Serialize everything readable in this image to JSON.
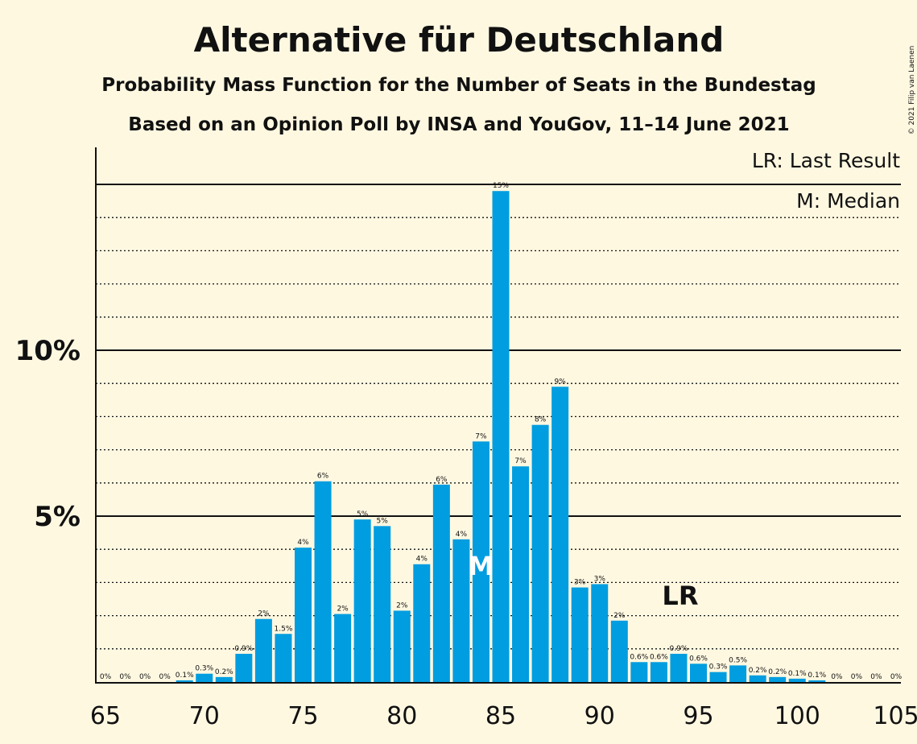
{
  "chart_data": {
    "type": "bar",
    "title": "Alternative für Deutschland",
    "subtitle1": "Probability Mass Function for the Number of Seats in the Bundestag",
    "subtitle2": "Based on an Opinion Poll by INSA and YouGov, 11–14 June 2021",
    "copyright": "© 2021 Filip van Laenen",
    "legend": [
      "LR: Last Result",
      "M: Median"
    ],
    "xlabel": "",
    "ylabel": "",
    "x_ticks": [
      "65",
      "70",
      "75",
      "80",
      "85",
      "90",
      "95",
      "100",
      "105"
    ],
    "y_ticks": [
      {
        "value": 5,
        "label": "5%"
      },
      {
        "value": 10,
        "label": "10%"
      }
    ],
    "ylim": [
      0,
      16
    ],
    "bar_color": "#009de0",
    "x": [
      65,
      66,
      67,
      68,
      69,
      70,
      71,
      72,
      73,
      74,
      75,
      76,
      77,
      78,
      79,
      80,
      81,
      82,
      83,
      84,
      85,
      86,
      87,
      88,
      89,
      90,
      91,
      92,
      93,
      94,
      95,
      96,
      97,
      98,
      99,
      100,
      101,
      102,
      103,
      104,
      105
    ],
    "values": [
      0,
      0,
      0,
      0,
      0.05,
      0.25,
      0.15,
      0.85,
      1.9,
      1.45,
      4.05,
      6.05,
      2.05,
      4.9,
      4.7,
      2.15,
      3.55,
      5.95,
      4.3,
      7.25,
      14.8,
      6.5,
      7.75,
      8.9,
      2.85,
      2.95,
      1.85,
      0.6,
      0.6,
      0.85,
      0.55,
      0.3,
      0.5,
      0.2,
      0.15,
      0.1,
      0.05,
      0,
      0,
      0,
      0
    ],
    "labels": [
      "0%",
      "0%",
      "0%",
      "0%",
      "0.1%",
      "0.3%",
      "0.2%",
      "0.9%",
      "2%",
      "1.5%",
      "4%",
      "6%",
      "2%",
      "5%",
      "5%",
      "2%",
      "4%",
      "6%",
      "4%",
      "7%",
      "15%",
      "7%",
      "8%",
      "9%",
      "3%",
      "3%",
      "2%",
      "0.6%",
      "0.6%",
      "0.9%",
      "0.6%",
      "0.3%",
      "0.5%",
      "0.2%",
      "0.2%",
      "0.1%",
      "0.1%",
      "0%",
      "0%",
      "0%",
      "0%"
    ],
    "median": {
      "x": 84,
      "label": "M"
    },
    "last_result": {
      "x": 94,
      "label": "LR"
    }
  }
}
